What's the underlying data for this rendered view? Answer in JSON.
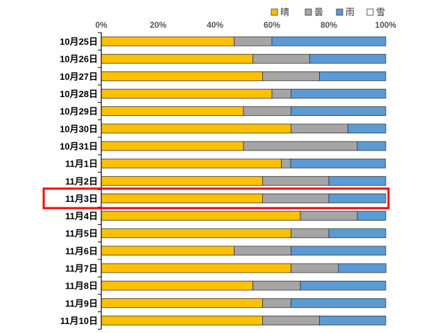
{
  "chart_data": {
    "type": "bar",
    "orientation": "horizontal",
    "stacked": "percent",
    "title": "",
    "xlabel": "",
    "ylabel": "",
    "xlim": [
      0,
      100
    ],
    "x_ticks": [
      "0%",
      "20%",
      "40%",
      "60%",
      "80%",
      "100%"
    ],
    "legend_position": "top-right",
    "categories": [
      "10月25日",
      "10月26日",
      "10月27日",
      "10月28日",
      "10月29日",
      "10月30日",
      "10月31日",
      "11月1日",
      "11月2日",
      "11月3日",
      "11月4日",
      "11月5日",
      "11月6日",
      "11月7日",
      "11月8日",
      "11月9日",
      "11月10日"
    ],
    "series": [
      {
        "name": "晴",
        "color": "#FFC000",
        "values": [
          46.7,
          53.3,
          56.7,
          60.0,
          50.0,
          66.7,
          50.0,
          63.3,
          56.7,
          56.7,
          70.0,
          66.7,
          46.7,
          66.7,
          53.3,
          56.7,
          56.7
        ]
      },
      {
        "name": "曇",
        "color": "#A5A5A5",
        "values": [
          13.3,
          20.0,
          20.0,
          6.7,
          16.7,
          20.0,
          40.0,
          3.3,
          23.3,
          23.3,
          20.0,
          13.3,
          20.0,
          16.7,
          16.7,
          10.0,
          20.0
        ]
      },
      {
        "name": "雨",
        "color": "#5B9BD5",
        "values": [
          40.0,
          26.7,
          23.3,
          33.3,
          33.3,
          13.3,
          10.0,
          33.3,
          20.0,
          20.0,
          10.0,
          20.0,
          33.3,
          16.7,
          30.0,
          33.3,
          23.3
        ]
      },
      {
        "name": "雪",
        "color": "#FFFFFF",
        "values": [
          0,
          0,
          0,
          0,
          0,
          0,
          0,
          0,
          0,
          0,
          0,
          0,
          0,
          0,
          0,
          0,
          0
        ]
      }
    ],
    "highlighted_category": "11月3日",
    "highlight_color": "#FF0000"
  }
}
